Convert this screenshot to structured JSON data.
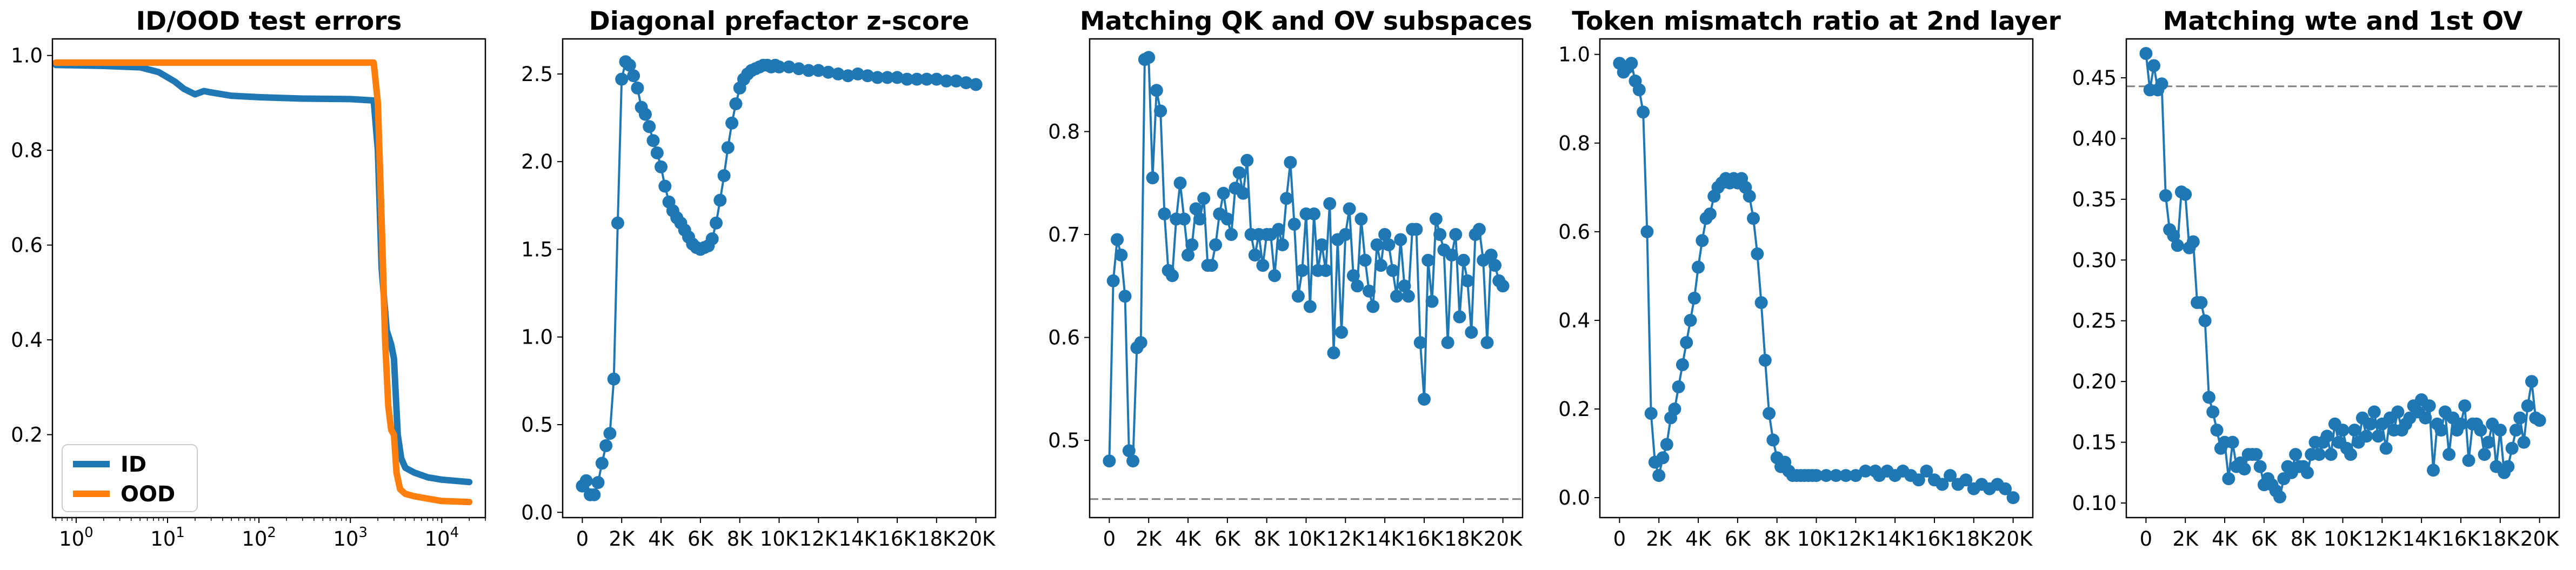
{
  "chart_data": [
    {
      "type": "line",
      "title": "ID/OOD test errors",
      "x_scale": "log",
      "xlim": [
        0.55,
        30000
      ],
      "ylim": [
        0.025,
        1.035
      ],
      "yticks": [
        0.2,
        0.4,
        0.6,
        0.8,
        1.0
      ],
      "xticks": [
        1,
        10,
        100,
        1000,
        10000
      ],
      "xtick_bases": [
        "10",
        "10",
        "10",
        "10",
        "10"
      ],
      "xtick_exps": [
        "0",
        "1",
        "2",
        "3",
        "4"
      ],
      "legend_position": "lower-left",
      "series": [
        {
          "name": "ID",
          "color": "#1f77b4",
          "x": [
            0.6,
            2,
            5,
            8,
            12,
            15,
            20,
            25,
            30,
            50,
            100,
            300,
            1000,
            1800,
            2000,
            2200,
            2500,
            2800,
            3000,
            3300,
            3600,
            4000,
            5000,
            7000,
            10000,
            20000
          ],
          "y": [
            0.98,
            0.978,
            0.975,
            0.965,
            0.945,
            0.93,
            0.918,
            0.925,
            0.922,
            0.915,
            0.912,
            0.909,
            0.908,
            0.905,
            0.8,
            0.55,
            0.42,
            0.39,
            0.36,
            0.2,
            0.15,
            0.13,
            0.12,
            0.11,
            0.105,
            0.1
          ]
        },
        {
          "name": "OOD",
          "color": "#ff7f0e",
          "x": [
            0.6,
            10,
            100,
            1000,
            1800,
            2000,
            2200,
            2400,
            2600,
            2800,
            3000,
            3200,
            3500,
            4000,
            5000,
            7000,
            10000,
            20000
          ],
          "y": [
            0.985,
            0.985,
            0.985,
            0.985,
            0.985,
            0.9,
            0.65,
            0.4,
            0.26,
            0.21,
            0.2,
            0.12,
            0.085,
            0.075,
            0.07,
            0.065,
            0.06,
            0.058
          ]
        }
      ]
    },
    {
      "type": "line",
      "title": "Diagonal prefactor z-score",
      "xlim": [
        -1000,
        21000
      ],
      "ylim": [
        -0.03,
        2.7
      ],
      "yticks": [
        0.0,
        0.5,
        1.0,
        1.5,
        2.0,
        2.5
      ],
      "xticks": [
        0,
        2000,
        4000,
        6000,
        8000,
        10000,
        12000,
        14000,
        16000,
        18000,
        20000
      ],
      "xticklabels": [
        "0",
        "2K",
        "4K",
        "6K",
        "8K",
        "10K",
        "12K",
        "14K",
        "16K",
        "18K",
        "20K"
      ],
      "series": [
        {
          "color": "#1f77b4",
          "x": [
            0,
            200,
            400,
            600,
            800,
            1000,
            1200,
            1400,
            1600,
            1800,
            2000,
            2200,
            2400,
            2600,
            2800,
            3000,
            3200,
            3400,
            3600,
            3800,
            4000,
            4200,
            4400,
            4600,
            4800,
            5000,
            5200,
            5400,
            5600,
            5800,
            6000,
            6200,
            6400,
            6600,
            6800,
            7000,
            7200,
            7400,
            7600,
            7800,
            8000,
            8200,
            8400,
            8600,
            8800,
            9000,
            9200,
            9400,
            9600,
            9800,
            10000,
            10500,
            11000,
            11500,
            12000,
            12500,
            13000,
            13500,
            14000,
            14500,
            15000,
            15500,
            16000,
            16500,
            17000,
            17500,
            18000,
            18500,
            19000,
            19500,
            20000
          ],
          "y": [
            0.15,
            0.18,
            0.1,
            0.1,
            0.17,
            0.28,
            0.38,
            0.45,
            0.76,
            1.65,
            2.47,
            2.57,
            2.55,
            2.49,
            2.42,
            2.31,
            2.27,
            2.2,
            2.12,
            2.05,
            1.97,
            1.86,
            1.77,
            1.72,
            1.68,
            1.65,
            1.61,
            1.57,
            1.53,
            1.51,
            1.5,
            1.51,
            1.52,
            1.56,
            1.65,
            1.78,
            1.92,
            2.08,
            2.22,
            2.33,
            2.42,
            2.47,
            2.5,
            2.52,
            2.53,
            2.54,
            2.55,
            2.55,
            2.54,
            2.55,
            2.54,
            2.54,
            2.53,
            2.52,
            2.52,
            2.51,
            2.5,
            2.49,
            2.5,
            2.49,
            2.48,
            2.48,
            2.48,
            2.47,
            2.47,
            2.47,
            2.47,
            2.46,
            2.46,
            2.45,
            2.44
          ]
        }
      ]
    },
    {
      "type": "line",
      "title": "Matching QK and OV subspaces",
      "xlim": [
        -1000,
        21000
      ],
      "ylim": [
        0.425,
        0.89
      ],
      "yticks": [
        0.5,
        0.6,
        0.7,
        0.8
      ],
      "xticks": [
        0,
        2000,
        4000,
        6000,
        8000,
        10000,
        12000,
        14000,
        16000,
        18000,
        20000
      ],
      "xticklabels": [
        "0",
        "2K",
        "4K",
        "6K",
        "8K",
        "10K",
        "12K",
        "14K",
        "16K",
        "18K",
        "20K"
      ],
      "hline": {
        "y": 0.443,
        "style": "dashed"
      },
      "series": [
        {
          "color": "#1f77b4",
          "x": [
            0,
            200,
            400,
            600,
            800,
            1000,
            1200,
            1400,
            1600,
            1800,
            2000,
            2200,
            2400,
            2600,
            2800,
            3000,
            3200,
            3400,
            3600,
            3800,
            4000,
            4200,
            4400,
            4600,
            4800,
            5000,
            5200,
            5400,
            5600,
            5800,
            6000,
            6200,
            6400,
            6600,
            6800,
            7000,
            7200,
            7400,
            7600,
            7800,
            8000,
            8200,
            8400,
            8600,
            8800,
            9000,
            9200,
            9400,
            9600,
            9800,
            10000,
            10200,
            10400,
            10600,
            10800,
            11000,
            11200,
            11400,
            11600,
            11800,
            12000,
            12200,
            12400,
            12600,
            12800,
            13000,
            13200,
            13400,
            13600,
            13800,
            14000,
            14200,
            14400,
            14600,
            14800,
            15000,
            15200,
            15400,
            15600,
            15800,
            16000,
            16200,
            16400,
            16600,
            16800,
            17000,
            17200,
            17400,
            17600,
            17800,
            18000,
            18200,
            18400,
            18600,
            18800,
            19000,
            19200,
            19400,
            19600,
            19800,
            20000
          ],
          "y": [
            0.48,
            0.655,
            0.695,
            0.68,
            0.64,
            0.49,
            0.48,
            0.59,
            0.595,
            0.87,
            0.872,
            0.755,
            0.84,
            0.82,
            0.72,
            0.665,
            0.66,
            0.715,
            0.75,
            0.715,
            0.68,
            0.69,
            0.725,
            0.715,
            0.735,
            0.67,
            0.67,
            0.69,
            0.72,
            0.74,
            0.715,
            0.7,
            0.745,
            0.76,
            0.74,
            0.772,
            0.7,
            0.68,
            0.7,
            0.67,
            0.7,
            0.7,
            0.66,
            0.705,
            0.69,
            0.735,
            0.77,
            0.71,
            0.64,
            0.665,
            0.72,
            0.63,
            0.72,
            0.665,
            0.69,
            0.665,
            0.73,
            0.585,
            0.695,
            0.605,
            0.7,
            0.725,
            0.66,
            0.65,
            0.715,
            0.675,
            0.645,
            0.63,
            0.69,
            0.67,
            0.7,
            0.69,
            0.665,
            0.64,
            0.695,
            0.65,
            0.64,
            0.705,
            0.705,
            0.595,
            0.54,
            0.675,
            0.635,
            0.715,
            0.7,
            0.685,
            0.595,
            0.68,
            0.7,
            0.62,
            0.675,
            0.655,
            0.605,
            0.7,
            0.705,
            0.675,
            0.595,
            0.68,
            0.67,
            0.655,
            0.65
          ]
        }
      ]
    },
    {
      "type": "line",
      "title": "Token mismatch ratio at 2nd layer",
      "xlim": [
        -1000,
        21000
      ],
      "ylim": [
        -0.045,
        1.035
      ],
      "yticks": [
        0.0,
        0.2,
        0.4,
        0.6,
        0.8,
        1.0
      ],
      "xticks": [
        0,
        2000,
        4000,
        6000,
        8000,
        10000,
        12000,
        14000,
        16000,
        18000,
        20000
      ],
      "xticklabels": [
        "0",
        "2K",
        "4K",
        "6K",
        "8K",
        "10K",
        "12K",
        "14K",
        "16K",
        "18K",
        "20K"
      ],
      "series": [
        {
          "color": "#1f77b4",
          "x": [
            0,
            200,
            400,
            600,
            800,
            1000,
            1200,
            1400,
            1600,
            1800,
            2000,
            2200,
            2400,
            2600,
            2800,
            3000,
            3200,
            3400,
            3600,
            3800,
            4000,
            4200,
            4400,
            4600,
            4800,
            5000,
            5200,
            5400,
            5600,
            5800,
            6000,
            6200,
            6400,
            6600,
            6800,
            7000,
            7200,
            7400,
            7600,
            7800,
            8000,
            8200,
            8400,
            8600,
            8800,
            9000,
            9200,
            9400,
            9600,
            9800,
            10000,
            10500,
            11000,
            11500,
            12000,
            12500,
            13000,
            13200,
            13600,
            14000,
            14400,
            14800,
            15200,
            15600,
            16000,
            16400,
            16800,
            17200,
            17600,
            18000,
            18400,
            18800,
            19200,
            19600,
            20000
          ],
          "y": [
            0.98,
            0.96,
            0.97,
            0.98,
            0.94,
            0.92,
            0.87,
            0.6,
            0.19,
            0.08,
            0.05,
            0.09,
            0.12,
            0.18,
            0.2,
            0.25,
            0.3,
            0.35,
            0.4,
            0.45,
            0.52,
            0.58,
            0.63,
            0.64,
            0.68,
            0.7,
            0.71,
            0.72,
            0.71,
            0.72,
            0.71,
            0.72,
            0.7,
            0.68,
            0.63,
            0.55,
            0.44,
            0.31,
            0.19,
            0.13,
            0.09,
            0.07,
            0.08,
            0.06,
            0.05,
            0.05,
            0.05,
            0.05,
            0.05,
            0.05,
            0.05,
            0.05,
            0.05,
            0.05,
            0.05,
            0.06,
            0.06,
            0.05,
            0.06,
            0.05,
            0.06,
            0.05,
            0.04,
            0.06,
            0.04,
            0.03,
            0.05,
            0.03,
            0.04,
            0.02,
            0.03,
            0.02,
            0.03,
            0.02,
            0.0
          ]
        }
      ]
    },
    {
      "type": "line",
      "title": "Matching wte and 1st OV",
      "xlim": [
        -1000,
        21000
      ],
      "ylim": [
        0.088,
        0.482
      ],
      "yticks": [
        0.1,
        0.15,
        0.2,
        0.25,
        0.3,
        0.35,
        0.4,
        0.45
      ],
      "yticklabels": [
        "0.10",
        "0.15",
        "0.20",
        "0.25",
        "0.30",
        "0.35",
        "0.40",
        "0.45"
      ],
      "xticks": [
        0,
        2000,
        4000,
        6000,
        8000,
        10000,
        12000,
        14000,
        16000,
        18000,
        20000
      ],
      "xticklabels": [
        "0",
        "2K",
        "4K",
        "6K",
        "8K",
        "10K",
        "12K",
        "14K",
        "16K",
        "18K",
        "20K"
      ],
      "hline": {
        "y": 0.443,
        "style": "dashed"
      },
      "series": [
        {
          "color": "#1f77b4",
          "x": [
            0,
            200,
            400,
            600,
            800,
            1000,
            1200,
            1400,
            1600,
            1800,
            2000,
            2200,
            2400,
            2600,
            2800,
            3000,
            3200,
            3400,
            3600,
            3800,
            4000,
            4200,
            4400,
            4600,
            4800,
            5000,
            5200,
            5400,
            5600,
            5800,
            6000,
            6200,
            6400,
            6600,
            6800,
            7000,
            7200,
            7400,
            7600,
            7800,
            8000,
            8200,
            8400,
            8600,
            8800,
            9000,
            9200,
            9400,
            9600,
            9800,
            10000,
            10200,
            10400,
            10600,
            10800,
            11000,
            11200,
            11400,
            11600,
            11800,
            12000,
            12200,
            12400,
            12600,
            12800,
            13000,
            13200,
            13400,
            13600,
            13800,
            14000,
            14200,
            14400,
            14600,
            14800,
            15000,
            15200,
            15400,
            15600,
            15800,
            16000,
            16200,
            16400,
            16600,
            16800,
            17000,
            17200,
            17400,
            17600,
            17800,
            18000,
            18200,
            18400,
            18600,
            18800,
            19000,
            19200,
            19400,
            19600,
            19800,
            20000
          ],
          "y": [
            0.47,
            0.44,
            0.46,
            0.44,
            0.445,
            0.353,
            0.325,
            0.32,
            0.312,
            0.356,
            0.354,
            0.31,
            0.315,
            0.265,
            0.265,
            0.25,
            0.187,
            0.175,
            0.16,
            0.145,
            0.15,
            0.12,
            0.15,
            0.13,
            0.133,
            0.128,
            0.14,
            0.14,
            0.14,
            0.13,
            0.115,
            0.12,
            0.115,
            0.11,
            0.105,
            0.12,
            0.13,
            0.125,
            0.14,
            0.13,
            0.13,
            0.125,
            0.14,
            0.15,
            0.14,
            0.15,
            0.155,
            0.14,
            0.165,
            0.15,
            0.16,
            0.145,
            0.14,
            0.16,
            0.15,
            0.17,
            0.155,
            0.165,
            0.175,
            0.155,
            0.165,
            0.145,
            0.17,
            0.16,
            0.175,
            0.16,
            0.165,
            0.17,
            0.18,
            0.175,
            0.185,
            0.17,
            0.18,
            0.127,
            0.165,
            0.16,
            0.175,
            0.14,
            0.17,
            0.16,
            0.165,
            0.18,
            0.135,
            0.165,
            0.165,
            0.16,
            0.14,
            0.15,
            0.165,
            0.13,
            0.16,
            0.125,
            0.13,
            0.145,
            0.16,
            0.17,
            0.15,
            0.18,
            0.2,
            0.17,
            0.168
          ]
        }
      ]
    }
  ]
}
